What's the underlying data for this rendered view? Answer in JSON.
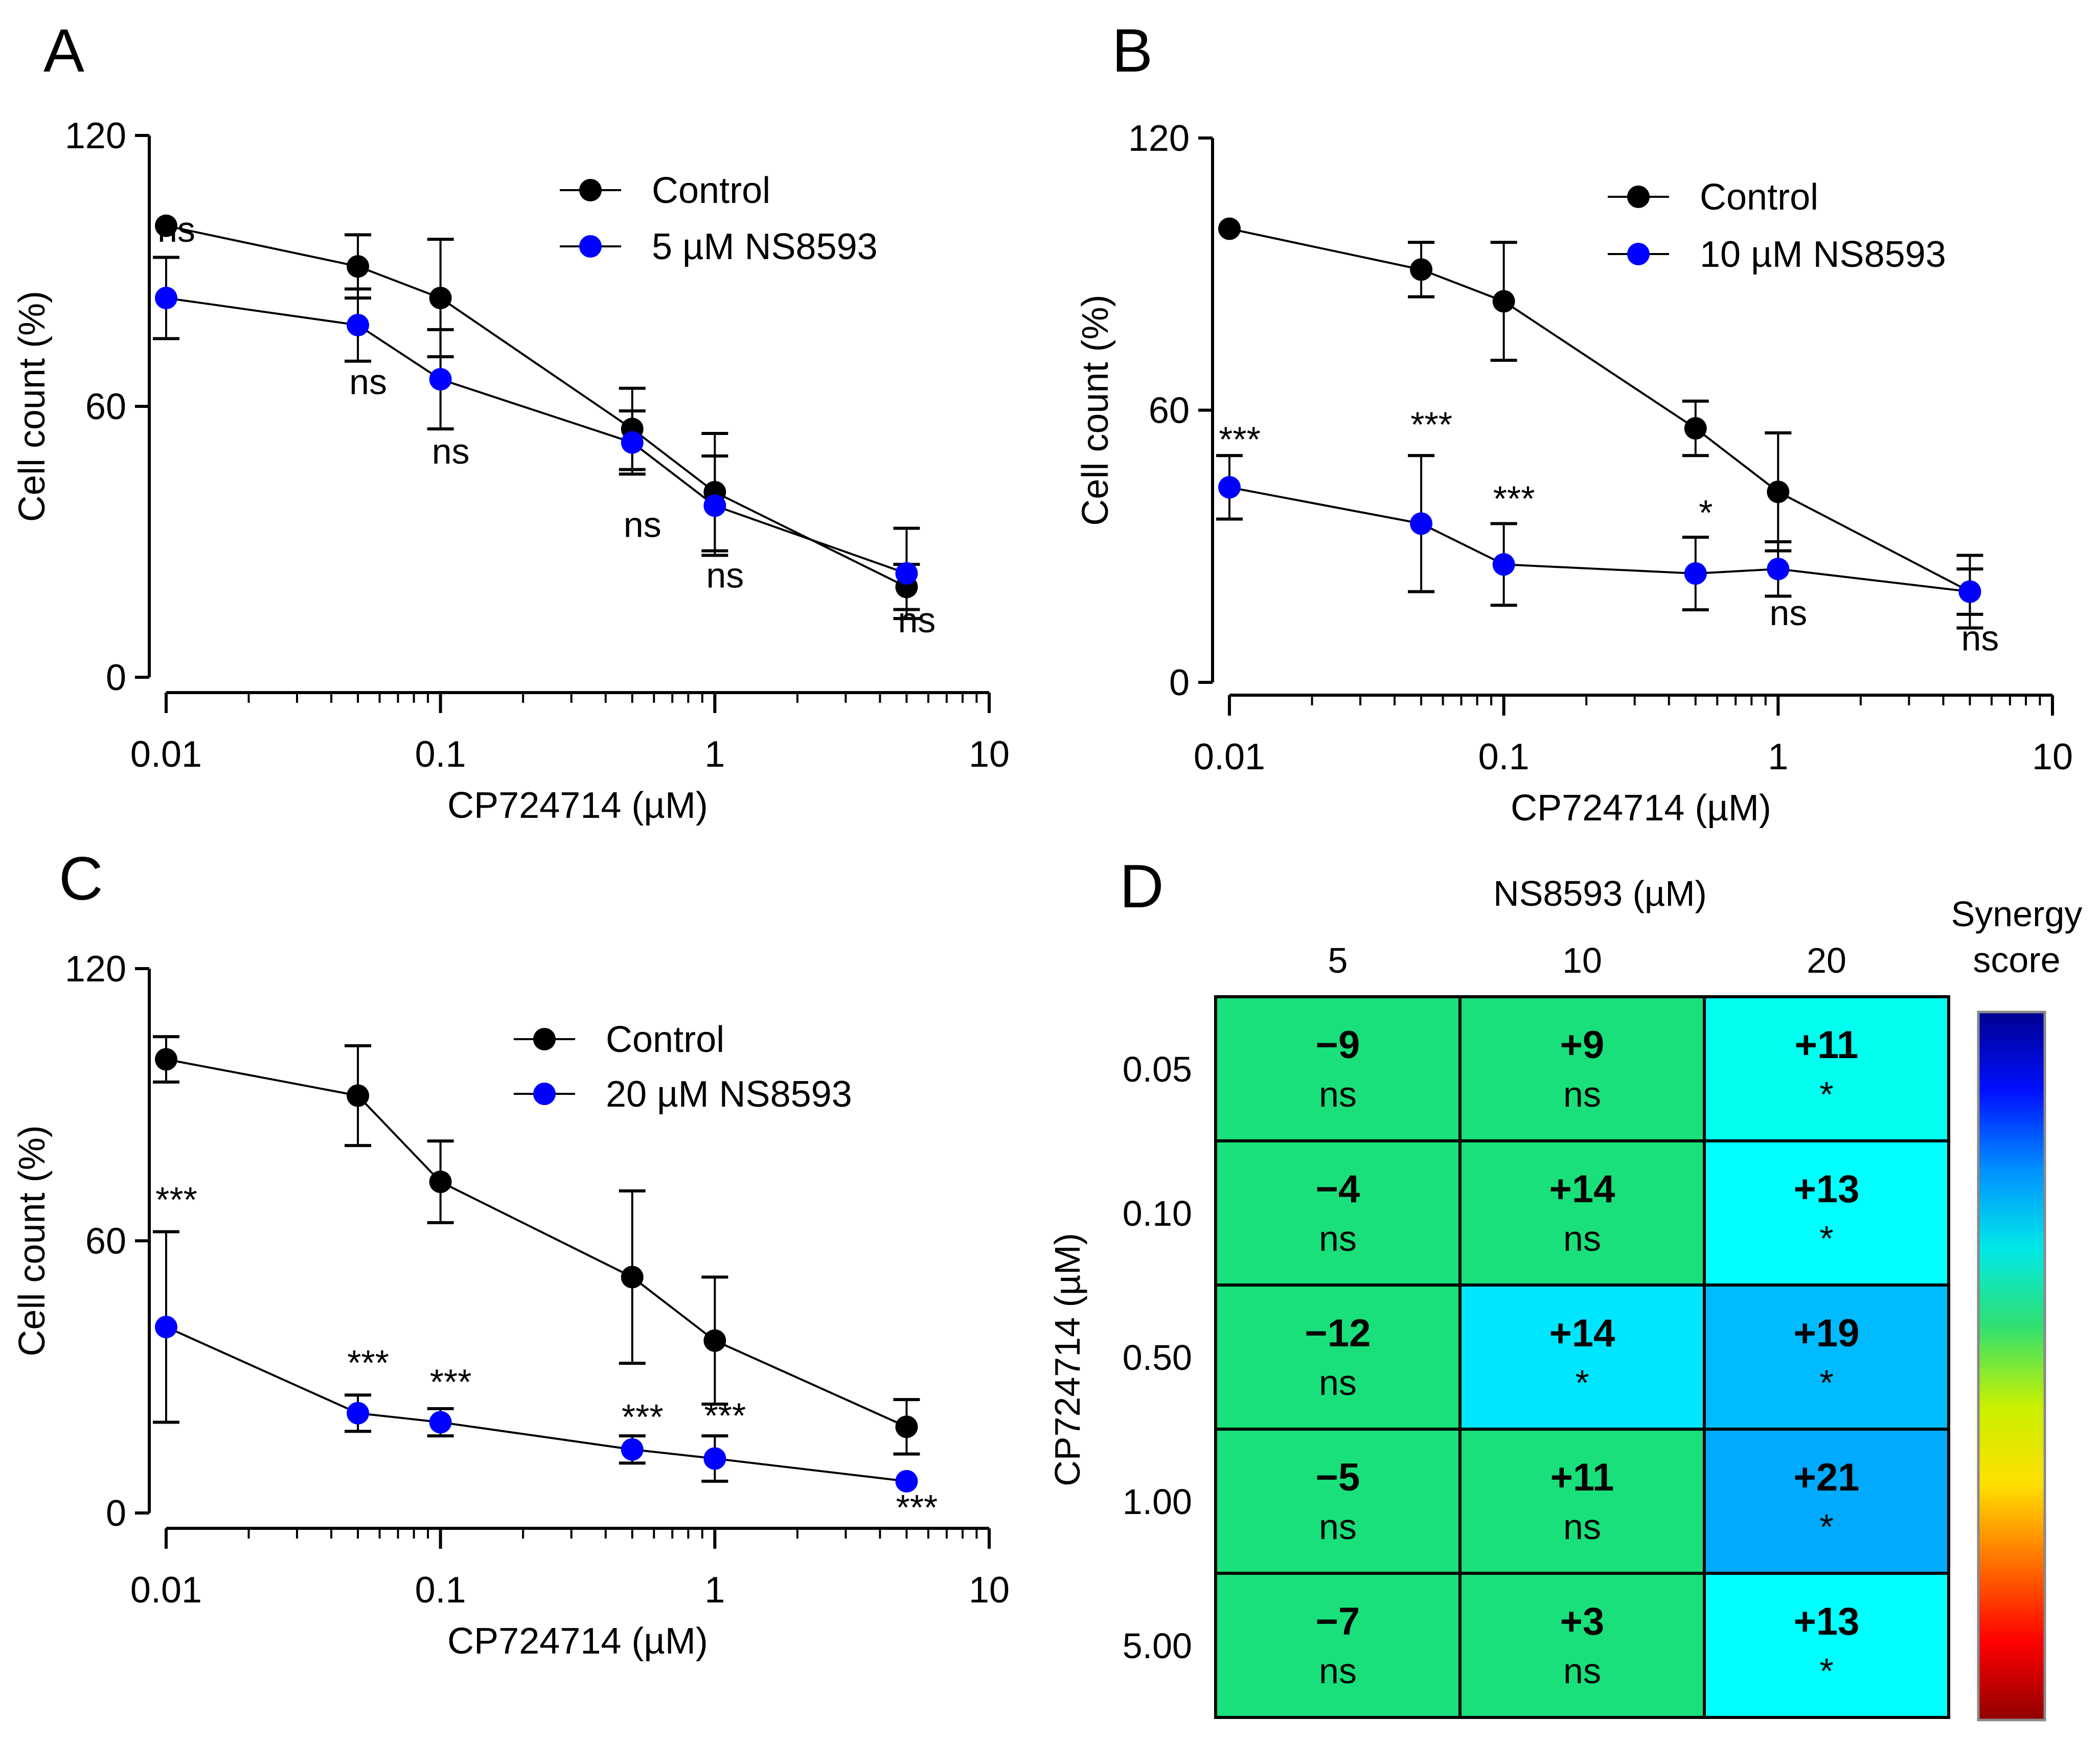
{
  "panels": [
    {
      "letter": "A"
    },
    {
      "letter": "B"
    },
    {
      "letter": "C"
    },
    {
      "letter": "D"
    }
  ],
  "chart_data": [
    {
      "panel": "A",
      "type": "line",
      "x_scale": "log",
      "xlabel": "CP724714 (µM)",
      "ylabel": "Cell count (%)",
      "xlim": [
        0.01,
        10
      ],
      "ylim": [
        0,
        120
      ],
      "xticks": [
        0.01,
        0.1,
        1,
        10
      ],
      "xtick_labels": [
        "0.01",
        "0.1",
        "1",
        "10"
      ],
      "yticks": [
        0,
        60,
        120
      ],
      "ytick_labels": [
        "0",
        "60",
        "120"
      ],
      "legend_position": "top-right",
      "x": [
        0.01,
        0.05,
        0.1,
        0.5,
        1,
        5
      ],
      "series": [
        {
          "name": "Control",
          "color": "#000000",
          "values": [
            100,
            91,
            84,
            55,
            41,
            20
          ],
          "errors": [
            0,
            7,
            13,
            9,
            13,
            5
          ]
        },
        {
          "name": "5 µM NS8593",
          "color": "#0000ff",
          "values": [
            84,
            78,
            66,
            52,
            38,
            23
          ],
          "errors": [
            9,
            8,
            11,
            7,
            11,
            10
          ]
        }
      ],
      "significance": [
        {
          "x": 0.01,
          "label": "ns"
        },
        {
          "x": 0.05,
          "label": "ns"
        },
        {
          "x": 0.1,
          "label": "ns"
        },
        {
          "x": 0.5,
          "label": "ns"
        },
        {
          "x": 1,
          "label": "ns"
        },
        {
          "x": 5,
          "label": "ns"
        }
      ]
    },
    {
      "panel": "B",
      "type": "line",
      "x_scale": "log",
      "xlabel": "CP724714 (µM)",
      "ylabel": "Cell count (%)",
      "xlim": [
        0.01,
        10
      ],
      "ylim": [
        0,
        120
      ],
      "xticks": [
        0.01,
        0.1,
        1,
        10
      ],
      "xtick_labels": [
        "0.01",
        "0.1",
        "1",
        "10"
      ],
      "yticks": [
        0,
        60,
        120
      ],
      "ytick_labels": [
        "0",
        "60",
        "120"
      ],
      "legend_position": "top-right",
      "x": [
        0.01,
        0.05,
        0.1,
        0.5,
        1,
        5
      ],
      "series": [
        {
          "name": "Control",
          "color": "#000000",
          "values": [
            100,
            91,
            84,
            56,
            42,
            20
          ],
          "errors": [
            0,
            6,
            13,
            6,
            13,
            5
          ]
        },
        {
          "name": "10 µM NS8593",
          "color": "#0000ff",
          "values": [
            43,
            35,
            26,
            24,
            25,
            20
          ],
          "errors": [
            7,
            15,
            9,
            8,
            6,
            8
          ]
        }
      ],
      "significance": [
        {
          "x": 0.01,
          "label": "***"
        },
        {
          "x": 0.05,
          "label": "***"
        },
        {
          "x": 0.1,
          "label": "***"
        },
        {
          "x": 0.5,
          "label": "*"
        },
        {
          "x": 1,
          "label": "ns"
        },
        {
          "x": 5,
          "label": "ns"
        }
      ]
    },
    {
      "panel": "C",
      "type": "line",
      "x_scale": "log",
      "xlabel": "CP724714 (µM)",
      "ylabel": "Cell count (%)",
      "xlim": [
        0.01,
        10
      ],
      "ylim": [
        0,
        120
      ],
      "xticks": [
        0.01,
        0.1,
        1,
        10
      ],
      "xtick_labels": [
        "0.01",
        "0.1",
        "1",
        "10"
      ],
      "yticks": [
        0,
        60,
        120
      ],
      "ytick_labels": [
        "0",
        "60",
        "120"
      ],
      "legend_position": "top-right",
      "x": [
        0.01,
        0.05,
        0.1,
        0.5,
        1,
        5
      ],
      "series": [
        {
          "name": "Control",
          "color": "#000000",
          "values": [
            100,
            92,
            73,
            52,
            38,
            19
          ],
          "errors": [
            5,
            11,
            9,
            19,
            14,
            6
          ]
        },
        {
          "name": "20 µM NS8593",
          "color": "#0000ff",
          "values": [
            41,
            22,
            20,
            14,
            12,
            7
          ],
          "errors": [
            21,
            4,
            3,
            3,
            5,
            0
          ]
        }
      ],
      "significance": [
        {
          "x": 0.01,
          "label": "***"
        },
        {
          "x": 0.05,
          "label": "***"
        },
        {
          "x": 0.1,
          "label": "***"
        },
        {
          "x": 0.5,
          "label": "***"
        },
        {
          "x": 1,
          "label": "***"
        },
        {
          "x": 5,
          "label": "***"
        }
      ]
    },
    {
      "panel": "D",
      "type": "heatmap",
      "title": "NS8593 (µM)",
      "xlabel": "NS8593 (µM)",
      "ylabel": "CP724714 (µM)",
      "colorbar_label": "Synergy score",
      "columns": [
        "5",
        "10",
        "20"
      ],
      "rows": [
        "0.05",
        "0.10",
        "0.50",
        "1.00",
        "5.00"
      ],
      "values": [
        [
          "−9",
          "+9",
          "+11"
        ],
        [
          "−4",
          "+14",
          "+13"
        ],
        [
          "−12",
          "+14",
          "+19"
        ],
        [
          "−5",
          "+11",
          "+21"
        ],
        [
          "−7",
          "+3",
          "+13"
        ]
      ],
      "significance": [
        [
          "ns",
          "ns",
          "*"
        ],
        [
          "ns",
          "ns",
          "*"
        ],
        [
          "ns",
          "*",
          "*"
        ],
        [
          "ns",
          "ns",
          "*"
        ],
        [
          "ns",
          "ns",
          "*"
        ]
      ],
      "cell_colors": [
        [
          "#19e07a",
          "#19e07a",
          "#00ffee"
        ],
        [
          "#19e07a",
          "#19e07a",
          "#00ffff"
        ],
        [
          "#19e07a",
          "#00e6ff",
          "#00bbff"
        ],
        [
          "#19e07a",
          "#19e07a",
          "#00aaff"
        ],
        [
          "#19e07a",
          "#19e07a",
          "#00ffff"
        ]
      ],
      "colorbar_colors": [
        "#000090",
        "#0010ff",
        "#0090ff",
        "#00e8e8",
        "#30e070",
        "#c8f000",
        "#ffe000",
        "#ff7000",
        "#ff0000",
        "#900000"
      ]
    }
  ]
}
